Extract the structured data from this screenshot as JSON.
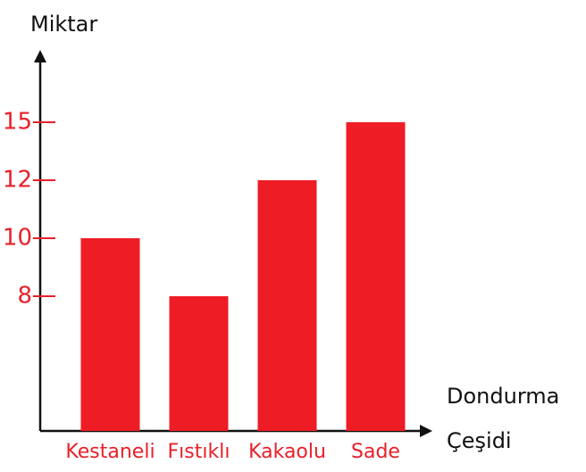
{
  "chart_data": {
    "type": "bar",
    "y_label": "Miktar",
    "x_label": [
      "Dondurma",
      "Çeşidi"
    ],
    "categories": [
      "Kestaneli",
      "Fıstıklı",
      "Kakaolu",
      "Sade"
    ],
    "values": [
      10,
      8,
      12,
      15
    ],
    "color": "#ee1c25",
    "label_color": "#e8202a",
    "ylim": [
      0,
      18
    ],
    "yticks": [
      8,
      10,
      12,
      15
    ],
    "grid": false
  }
}
